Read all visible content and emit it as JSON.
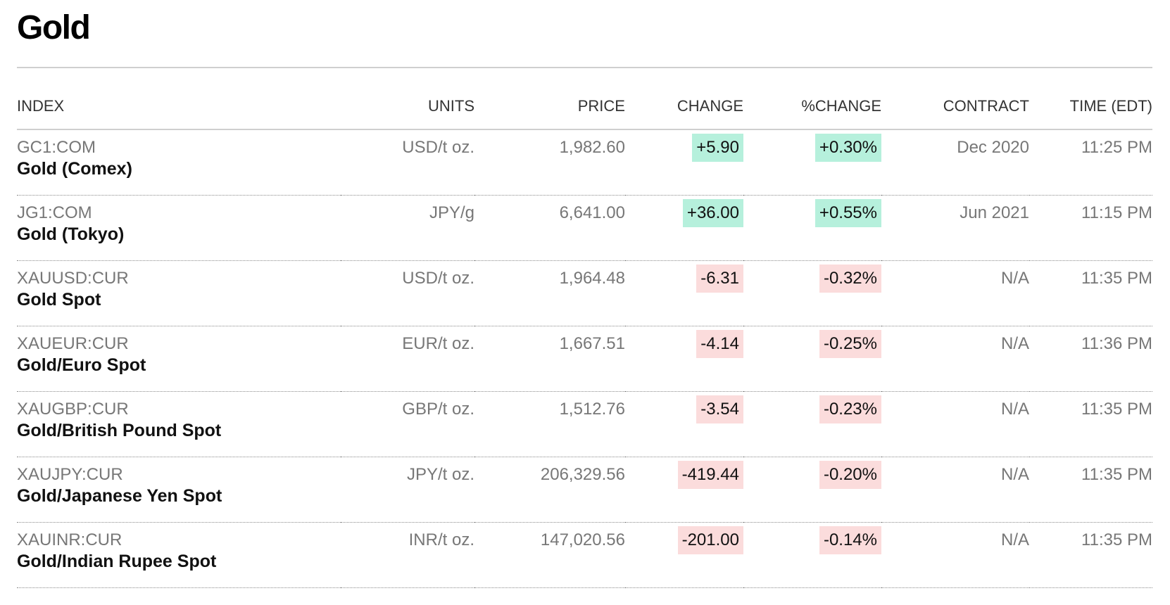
{
  "page": {
    "title": "Gold"
  },
  "colors": {
    "up_bg": "#b6f0dc",
    "down_bg": "#fbdcdc"
  },
  "table": {
    "headers": {
      "index": "INDEX",
      "units": "UNITS",
      "price": "PRICE",
      "change": "CHANGE",
      "pct_change": "%CHANGE",
      "contract": "CONTRACT",
      "time": "TIME (EDT)"
    },
    "rows": [
      {
        "ticker": "GC1:COM",
        "name": "Gold (Comex)",
        "units": "USD/t oz.",
        "price": "1,982.60",
        "change": "+5.90",
        "pct_change": "+0.30%",
        "contract": "Dec 2020",
        "time": "11:25 PM",
        "direction": "up"
      },
      {
        "ticker": "JG1:COM",
        "name": "Gold (Tokyo)",
        "units": "JPY/g",
        "price": "6,641.00",
        "change": "+36.00",
        "pct_change": "+0.55%",
        "contract": "Jun 2021",
        "time": "11:15 PM",
        "direction": "up"
      },
      {
        "ticker": "XAUUSD:CUR",
        "name": "Gold Spot",
        "units": "USD/t oz.",
        "price": "1,964.48",
        "change": "-6.31",
        "pct_change": "-0.32%",
        "contract": "N/A",
        "time": "11:35 PM",
        "direction": "down"
      },
      {
        "ticker": "XAUEUR:CUR",
        "name": "Gold/Euro Spot",
        "units": "EUR/t oz.",
        "price": "1,667.51",
        "change": "-4.14",
        "pct_change": "-0.25%",
        "contract": "N/A",
        "time": "11:36 PM",
        "direction": "down"
      },
      {
        "ticker": "XAUGBP:CUR",
        "name": "Gold/British Pound Spot",
        "units": "GBP/t oz.",
        "price": "1,512.76",
        "change": "-3.54",
        "pct_change": "-0.23%",
        "contract": "N/A",
        "time": "11:35 PM",
        "direction": "down"
      },
      {
        "ticker": "XAUJPY:CUR",
        "name": "Gold/Japanese Yen Spot",
        "units": "JPY/t oz.",
        "price": "206,329.56",
        "change": "-419.44",
        "pct_change": "-0.20%",
        "contract": "N/A",
        "time": "11:35 PM",
        "direction": "down"
      },
      {
        "ticker": "XAUINR:CUR",
        "name": "Gold/Indian Rupee Spot",
        "units": "INR/t oz.",
        "price": "147,020.56",
        "change": "-201.00",
        "pct_change": "-0.14%",
        "contract": "N/A",
        "time": "11:35 PM",
        "direction": "down"
      }
    ]
  }
}
